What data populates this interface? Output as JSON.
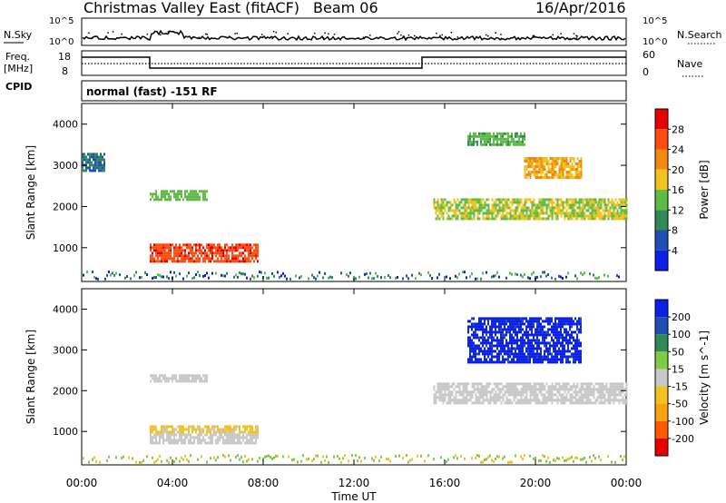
{
  "header": {
    "station": "Christmas Valley East (fitACF)",
    "beam": "Beam 06",
    "date": "16/Apr/2016"
  },
  "nsky_panel": {
    "left_label": "N.Sky",
    "left_ticks": [
      "10^5",
      "10^0"
    ],
    "right_label": "N.Search",
    "right_ticks": [
      "10^5",
      "10^0"
    ]
  },
  "freq_panel": {
    "left_label_top": "Freq.",
    "left_label_bottom": "[MHz]",
    "left_ticks": [
      "18",
      "8"
    ],
    "right_label": "Nave",
    "right_ticks": [
      "60",
      "0"
    ]
  },
  "cpid": {
    "label": "CPID",
    "value": "normal (fast) -151 RF"
  },
  "colors": {
    "power": [
      "#0a1fe8",
      "#1f4fb3",
      "#2f8a55",
      "#5ebc45",
      "#f2c21e",
      "#f28a12",
      "#ff4d0f",
      "#e60000"
    ],
    "velocity": [
      "#e60000",
      "#ff5a00",
      "#f7a30e",
      "#f2c21e",
      "#c8c8c8",
      "#7ccc45",
      "#2f8a55",
      "#1f4fb3",
      "#0a1fe8"
    ],
    "ground_scatter": "#c8c8c8"
  },
  "chart_data": [
    {
      "type": "heatmap",
      "title": "",
      "xlabel": "Time UT",
      "ylabel": "Slant Range [km]",
      "xlim": [
        "00:00",
        "24:00"
      ],
      "ylim": [
        180,
        4500
      ],
      "x_ticks": [
        "00:00",
        "04:00",
        "08:00",
        "12:00",
        "16:00",
        "20:00",
        "00:00"
      ],
      "y_ticks": [
        1000,
        2000,
        3000,
        4000
      ],
      "colorbar": {
        "label": "Power [dB]",
        "ticks": [
          4,
          8,
          12,
          16,
          20,
          24,
          28
        ],
        "range": [
          0,
          32
        ]
      },
      "regions": [
        {
          "t_start": 3.0,
          "t_end": 7.8,
          "range_low": 700,
          "range_high": 1100,
          "value": 27
        },
        {
          "t_start": 3.0,
          "t_end": 5.5,
          "range_low": 2200,
          "range_high": 2400,
          "value": 14
        },
        {
          "t_start": 0.0,
          "t_end": 1.0,
          "range_low": 2900,
          "range_high": 3300,
          "value": 8
        },
        {
          "t_start": 15.5,
          "t_end": 24.0,
          "range_low": 1700,
          "range_high": 2200,
          "value": 16
        },
        {
          "t_start": 19.5,
          "t_end": 22.0,
          "range_low": 2700,
          "range_high": 3200,
          "value": 20
        },
        {
          "t_start": 17.0,
          "t_end": 19.5,
          "range_low": 3500,
          "range_high": 3800,
          "value": 13
        }
      ]
    },
    {
      "type": "heatmap",
      "title": "",
      "xlabel": "Time UT",
      "ylabel": "Slant Range [km]",
      "xlim": [
        "00:00",
        "24:00"
      ],
      "ylim": [
        180,
        4500
      ],
      "x_ticks": [
        "00:00",
        "04:00",
        "08:00",
        "12:00",
        "16:00",
        "20:00",
        "00:00"
      ],
      "y_ticks": [
        1000,
        2000,
        3000,
        4000
      ],
      "colorbar": {
        "label": "Velocity [m s^-1]",
        "ticks": [
          200,
          100,
          50,
          15,
          -15,
          -50,
          -100,
          -200
        ],
        "range": [
          -250,
          250
        ]
      },
      "regions": [
        {
          "t_start": 3.0,
          "t_end": 7.8,
          "range_low": 700,
          "range_high": 950,
          "value": 0,
          "ground_scatter": true
        },
        {
          "t_start": 3.0,
          "t_end": 7.8,
          "range_low": 950,
          "range_high": 1150,
          "value": -40
        },
        {
          "t_start": 3.0,
          "t_end": 5.5,
          "range_low": 2200,
          "range_high": 2400,
          "value": 0,
          "ground_scatter": true
        },
        {
          "t_start": 15.5,
          "t_end": 24.0,
          "range_low": 1700,
          "range_high": 2200,
          "value": 0,
          "ground_scatter": true
        },
        {
          "t_start": 17.0,
          "t_end": 22.0,
          "range_low": 2700,
          "range_high": 3800,
          "value": 220
        }
      ]
    }
  ]
}
